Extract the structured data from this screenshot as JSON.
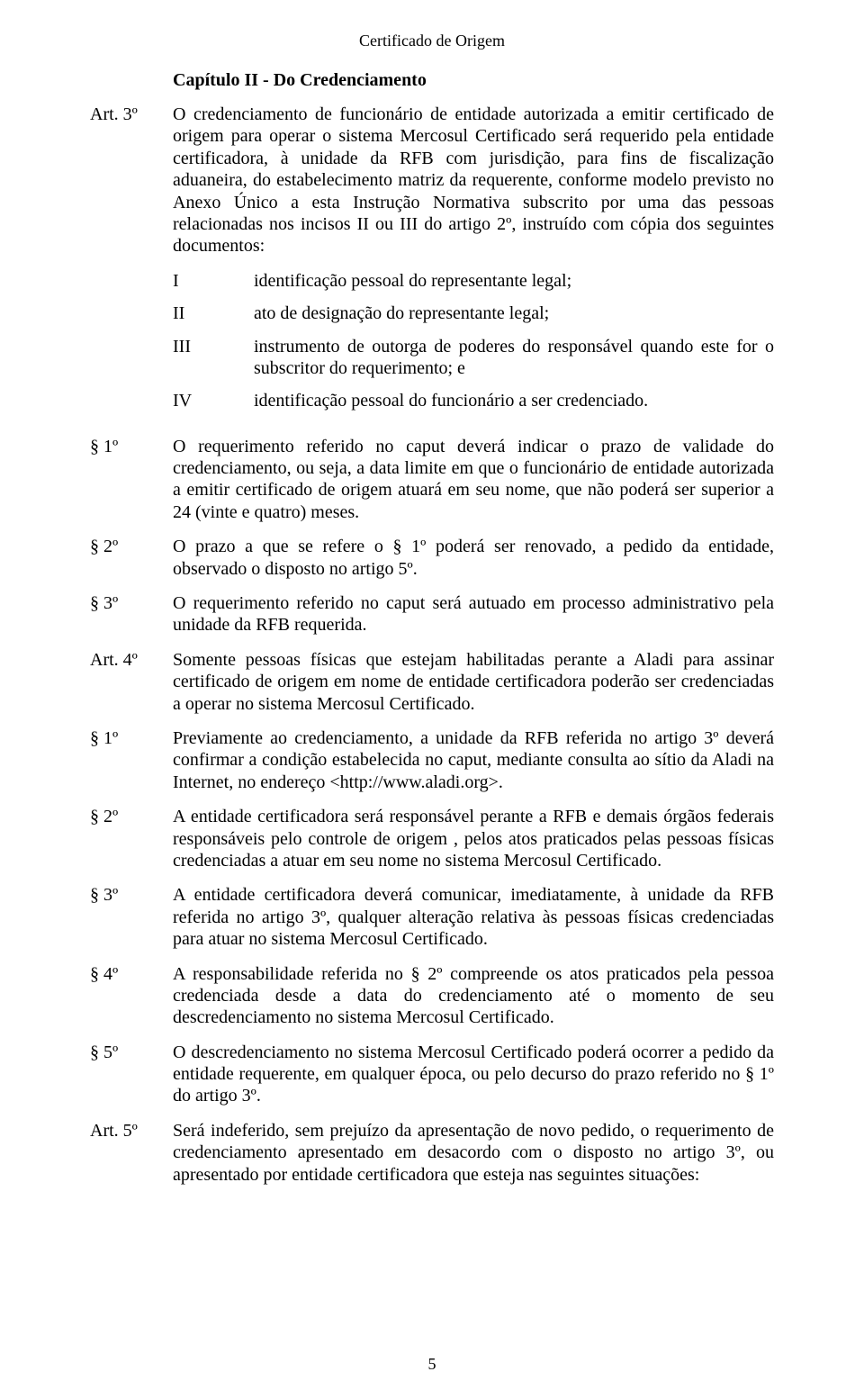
{
  "header": "Certificado de Origem",
  "chapter": "Capítulo II - Do Credenciamento",
  "articles": [
    {
      "label": "Art. 3º",
      "text": "O credenciamento de funcionário de entidade autorizada a emitir certificado de origem para operar o sistema Mercosul Certificado será requerido pela entidade certificadora, à unidade da RFB com jurisdição, para fins de fiscalização aduaneira, do estabelecimento matriz da requerente, conforme modelo previsto no Anexo Único a esta Instrução Normativa subscrito por uma das pessoas relacionadas nos incisos II ou III do artigo 2º, instruído com cópia dos seguintes documentos:",
      "subs": [
        {
          "roman": "I",
          "text": "identificação pessoal do representante legal;"
        },
        {
          "roman": "II",
          "text": "ato de designação do representante legal;"
        },
        {
          "roman": "III",
          "text": "instrumento de outorga de poderes do responsável quando este for o subscritor do requerimento; e"
        },
        {
          "roman": "IV",
          "text": "identificação pessoal do funcionário a ser credenciado."
        }
      ]
    },
    {
      "label": "§ 1º",
      "text": "O requerimento referido no caput deverá indicar o prazo de validade do credenciamento, ou seja, a data limite em que o funcionário de entidade autorizada a emitir certificado de origem atuará em seu nome, que não poderá ser superior a 24 (vinte e quatro) meses."
    },
    {
      "label": "§ 2º",
      "text": "O prazo a que se refere o § 1º poderá ser renovado, a pedido da entidade, observado o disposto no artigo 5º."
    },
    {
      "label": "§ 3º",
      "text": "O requerimento referido no caput será autuado em processo administrativo pela unidade da RFB requerida."
    },
    {
      "label": "Art. 4º",
      "text": "Somente pessoas físicas que estejam habilitadas perante a Aladi para assinar certificado de origem em nome de entidade certificadora poderão ser credenciadas a operar no sistema Mercosul Certificado."
    },
    {
      "label": "§ 1º",
      "text": "Previamente ao credenciamento, a unidade da RFB referida no artigo 3º deverá confirmar a condição estabelecida no caput, mediante consulta ao sítio da Aladi na Internet, no endereço <http://www.aladi.org>."
    },
    {
      "label": "§ 2º",
      "text": "A entidade certificadora será responsável perante a RFB e demais órgãos federais responsáveis pelo controle de origem , pelos atos praticados pelas pessoas físicas credenciadas a atuar em seu nome no sistema Mercosul Certificado."
    },
    {
      "label": "§ 3º",
      "text": "A entidade certificadora deverá comunicar, imediatamente, à unidade da RFB referida no artigo 3º, qualquer alteração relativa às pessoas físicas credenciadas para atuar no sistema Mercosul Certificado."
    },
    {
      "label": "§ 4º",
      "text": "A responsabilidade referida no § 2º compreende os atos praticados pela pessoa credenciada desde a data do credenciamento até o momento de seu descredenciamento no sistema Mercosul Certificado."
    },
    {
      "label": "§ 5º",
      "text": "O descredenciamento no sistema Mercosul Certificado poderá ocorrer a pedido da entidade requerente, em qualquer época, ou pelo decurso do prazo referido no § 1º do artigo 3º."
    },
    {
      "label": "Art. 5º",
      "text": "Será indeferido, sem prejuízo da apresentação de novo pedido, o requerimento de credenciamento apresentado em desacordo com o disposto no artigo 3º, ou apresentado por entidade certificadora que esteja nas seguintes situações:"
    }
  ],
  "page_number": "5"
}
